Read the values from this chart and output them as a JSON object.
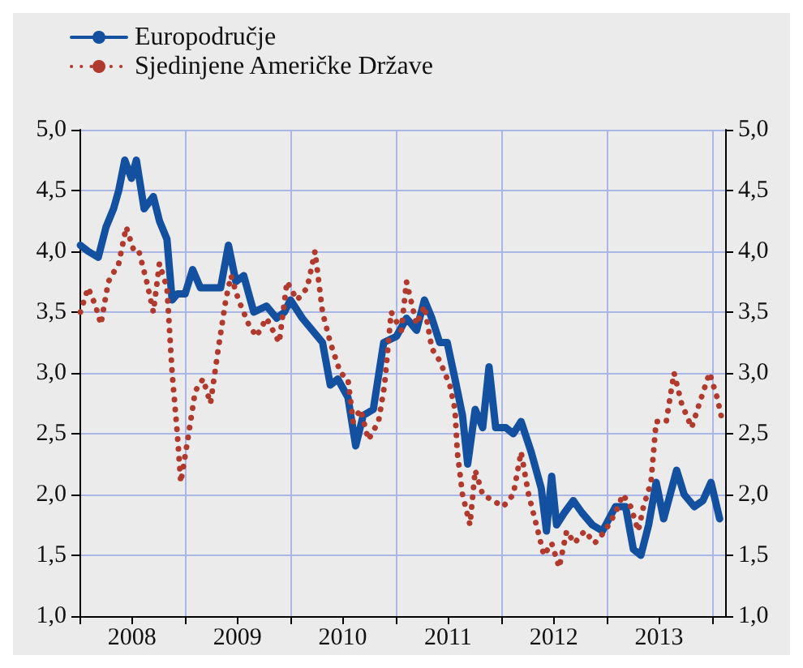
{
  "chart_data": {
    "type": "line",
    "xlim": [
      "2008-01-01",
      "2014-02-15"
    ],
    "xticks": [
      {
        "value": "2008-01-01",
        "label": null
      },
      {
        "value": "2008-07-01",
        "label": "2008"
      },
      {
        "value": "2009-01-01",
        "label": null
      },
      {
        "value": "2009-07-01",
        "label": "2009"
      },
      {
        "value": "2010-01-01",
        "label": null
      },
      {
        "value": "2010-07-01",
        "label": "2010"
      },
      {
        "value": "2011-01-01",
        "label": null
      },
      {
        "value": "2011-07-01",
        "label": "2011"
      },
      {
        "value": "2012-01-01",
        "label": null
      },
      {
        "value": "2012-07-01",
        "label": "2012"
      },
      {
        "value": "2013-01-01",
        "label": null
      },
      {
        "value": "2013-07-01",
        "label": "2013"
      },
      {
        "value": "2014-01-01",
        "label": null
      }
    ],
    "ylim": [
      1.0,
      5.0
    ],
    "yticks": [
      {
        "value": 1.0,
        "label": "1,0"
      },
      {
        "value": 1.5,
        "label": "1,5"
      },
      {
        "value": 2.0,
        "label": "2,0"
      },
      {
        "value": 2.5,
        "label": "2,5"
      },
      {
        "value": 3.0,
        "label": "3,0"
      },
      {
        "value": 3.5,
        "label": "3,5"
      },
      {
        "value": 4.0,
        "label": "4,0"
      },
      {
        "value": 4.5,
        "label": "4,5"
      },
      {
        "value": 5.0,
        "label": "5,0"
      }
    ],
    "y2lim": [
      1.0,
      5.0
    ],
    "y2ticks": [
      {
        "value": 1.0,
        "label": "1,0"
      },
      {
        "value": 1.5,
        "label": "1,5"
      },
      {
        "value": 2.0,
        "label": "2,0"
      },
      {
        "value": 2.5,
        "label": "2,5"
      },
      {
        "value": 3.0,
        "label": "3,0"
      },
      {
        "value": 3.5,
        "label": "3,5"
      },
      {
        "value": 4.0,
        "label": "4,0"
      },
      {
        "value": 4.5,
        "label": "4,5"
      },
      {
        "value": 5.0,
        "label": "5,0"
      }
    ],
    "grid": true,
    "legend": "top left",
    "series": [
      {
        "name": "Europodručje",
        "color": "#1450a0",
        "line_style": "solid",
        "x": [
          "2008-01-04",
          "2008-01-31",
          "2008-03-06",
          "2008-04-02",
          "2008-04-28",
          "2008-05-16",
          "2008-06-06",
          "2008-06-29",
          "2008-07-16",
          "2008-08-12",
          "2008-09-13",
          "2008-10-04",
          "2008-10-30",
          "2008-11-17",
          "2008-12-05",
          "2009-01-01",
          "2009-01-27",
          "2009-02-23",
          "2009-03-30",
          "2009-05-04",
          "2009-05-31",
          "2009-06-26",
          "2009-07-23",
          "2009-08-27",
          "2009-10-10",
          "2009-11-14",
          "2009-12-11",
          "2010-01-01",
          "2010-02-11",
          "2010-03-18",
          "2010-04-22",
          "2010-05-19",
          "2010-06-14",
          "2010-07-19",
          "2010-08-15",
          "2010-09-10",
          "2010-10-15",
          "2010-11-20",
          "2011-01-03",
          "2011-02-07",
          "2011-03-14",
          "2011-04-10",
          "2011-05-06",
          "2011-06-02",
          "2011-06-28",
          "2011-07-25",
          "2011-08-20",
          "2011-09-07",
          "2011-10-03",
          "2011-10-29",
          "2011-11-20",
          "2011-12-13",
          "2012-01-17",
          "2012-02-12",
          "2012-03-10",
          "2012-04-14",
          "2012-05-19",
          "2012-06-06",
          "2012-06-24",
          "2012-07-11",
          "2012-08-07",
          "2012-09-07",
          "2012-10-07",
          "2012-11-12",
          "2012-12-17",
          "2013-01-31",
          "2013-03-07",
          "2013-04-03",
          "2013-04-29",
          "2013-05-26",
          "2013-06-21",
          "2013-07-17",
          "2013-08-31",
          "2013-09-26",
          "2013-10-31",
          "2013-11-30",
          "2013-12-28",
          "2014-01-27"
        ],
        "values": [
          4.05,
          4.0,
          3.95,
          4.2,
          4.35,
          4.5,
          4.75,
          4.6,
          4.75,
          4.35,
          4.45,
          4.25,
          4.1,
          3.6,
          3.65,
          3.65,
          3.85,
          3.7,
          3.7,
          3.7,
          4.05,
          3.75,
          3.8,
          3.5,
          3.55,
          3.45,
          3.5,
          3.6,
          3.45,
          3.35,
          3.25,
          2.9,
          2.95,
          2.8,
          2.4,
          2.65,
          2.7,
          3.25,
          3.3,
          3.45,
          3.35,
          3.6,
          3.45,
          3.25,
          3.25,
          2.95,
          2.65,
          2.25,
          2.7,
          2.55,
          3.05,
          2.55,
          2.55,
          2.5,
          2.6,
          2.35,
          2.05,
          1.7,
          2.15,
          1.75,
          1.85,
          1.95,
          1.85,
          1.75,
          1.7,
          1.9,
          1.9,
          1.55,
          1.5,
          1.75,
          2.1,
          1.8,
          2.2,
          2.0,
          1.9,
          1.95,
          2.1,
          1.8
        ]
      },
      {
        "name": "Sjedinjene Američke Države",
        "color": "#b03a2e",
        "line_style": "dotted",
        "x": [
          "2008-01-04",
          "2008-01-31",
          "2008-02-26",
          "2008-03-15",
          "2008-04-10",
          "2008-05-16",
          "2008-06-11",
          "2008-07-08",
          "2008-07-25",
          "2008-08-21",
          "2008-09-13",
          "2008-10-04",
          "2008-10-30",
          "2008-11-17",
          "2008-12-05",
          "2008-12-17",
          "2009-01-10",
          "2009-02-05",
          "2009-03-04",
          "2009-03-30",
          "2009-04-26",
          "2009-05-22",
          "2009-06-09",
          "2009-07-05",
          "2009-08-09",
          "2009-09-05",
          "2009-10-10",
          "2009-11-23",
          "2009-12-20",
          "2010-01-24",
          "2010-02-28",
          "2010-03-27",
          "2010-04-22",
          "2010-05-19",
          "2010-06-23",
          "2010-07-19",
          "2010-08-06",
          "2010-09-01",
          "2010-09-28",
          "2010-11-02",
          "2010-11-23",
          "2010-12-16",
          "2011-01-20",
          "2011-02-07",
          "2011-03-14",
          "2011-04-10",
          "2011-05-06",
          "2011-06-02",
          "2011-07-07",
          "2011-07-25",
          "2011-08-02",
          "2011-08-20",
          "2011-09-15",
          "2011-10-03",
          "2011-10-29",
          "2011-12-04",
          "2012-01-08",
          "2012-02-12",
          "2012-03-10",
          "2012-04-05",
          "2012-05-02",
          "2012-05-28",
          "2012-06-24",
          "2012-07-20",
          "2012-08-15",
          "2012-09-11",
          "2012-10-16",
          "2012-11-20",
          "2012-12-26",
          "2013-01-31",
          "2013-02-26",
          "2013-03-25",
          "2013-04-20",
          "2013-05-08",
          "2013-06-03",
          "2013-06-21",
          "2013-07-26",
          "2013-08-22",
          "2013-09-17",
          "2013-10-22",
          "2013-11-18",
          "2013-12-23",
          "2014-01-18",
          "2014-02-01"
        ],
        "values": [
          3.5,
          3.7,
          3.55,
          3.4,
          3.75,
          3.9,
          4.2,
          4.0,
          4.0,
          3.75,
          3.5,
          3.9,
          3.7,
          3.0,
          2.5,
          2.1,
          2.45,
          2.85,
          2.95,
          2.75,
          3.2,
          3.6,
          3.8,
          3.6,
          3.4,
          3.3,
          3.45,
          3.25,
          3.75,
          3.6,
          3.7,
          4.0,
          3.5,
          3.25,
          3.0,
          2.95,
          2.6,
          2.7,
          2.45,
          2.6,
          2.9,
          3.5,
          3.35,
          3.75,
          3.4,
          3.55,
          3.2,
          3.1,
          2.9,
          2.7,
          2.35,
          2.0,
          1.75,
          2.2,
          2.0,
          1.95,
          1.9,
          2.0,
          2.35,
          2.0,
          1.75,
          1.5,
          1.6,
          1.4,
          1.7,
          1.6,
          1.7,
          1.6,
          1.7,
          1.85,
          2.0,
          1.9,
          1.7,
          1.9,
          2.1,
          2.6,
          2.6,
          3.0,
          2.75,
          2.55,
          2.75,
          3.0,
          2.8,
          2.65
        ]
      }
    ]
  }
}
